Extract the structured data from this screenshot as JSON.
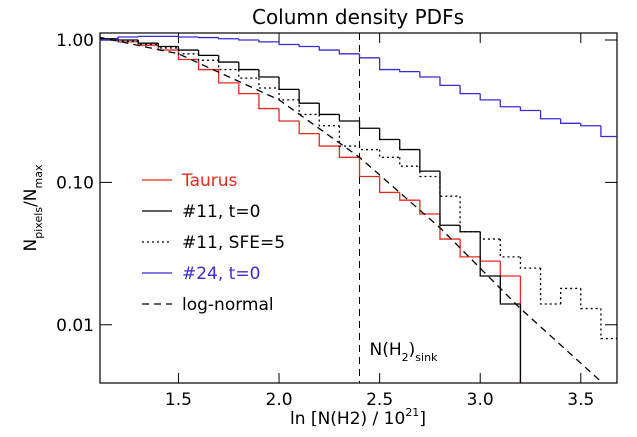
{
  "chart_data": {
    "type": "histogram",
    "title": "Column density PDFs",
    "xlabel": [
      "ln [N(H2) / 10",
      "21",
      "]"
    ],
    "ylabel": [
      "N",
      "pixels",
      "/N",
      "max"
    ],
    "annotation": [
      "N(H",
      "2",
      ")",
      "sink"
    ],
    "annotation_x": 2.4,
    "bins": [
      1.1,
      1.2,
      1.3,
      1.4,
      1.5,
      1.6,
      1.7,
      1.8,
      1.9,
      2.0,
      2.1,
      2.2,
      2.3,
      2.4,
      2.5,
      2.6,
      2.7,
      2.8,
      2.9,
      3.0,
      3.1,
      3.2,
      3.3,
      3.4,
      3.5,
      3.6,
      3.7
    ],
    "series": [
      {
        "name": "Taurus",
        "color": "#e8281e",
        "style": "solid",
        "values": [
          1.0,
          0.97,
          0.92,
          0.85,
          0.73,
          0.62,
          0.5,
          0.42,
          0.33,
          0.27,
          0.22,
          0.18,
          0.15,
          0.11,
          0.085,
          0.075,
          0.06,
          0.04,
          0.03,
          0.028,
          0.022,
          null,
          null,
          null,
          null,
          null
        ]
      },
      {
        "name": "#11, t=0",
        "color": "#000000",
        "style": "solid",
        "values": [
          1.02,
          1.0,
          0.95,
          0.9,
          0.85,
          0.78,
          0.7,
          0.62,
          0.55,
          0.45,
          0.36,
          0.3,
          0.27,
          0.24,
          0.2,
          0.17,
          0.12,
          0.05,
          0.045,
          0.022,
          0.014,
          null,
          null,
          null,
          null,
          null
        ]
      },
      {
        "name": "#11, SFE=5",
        "color": "#000000",
        "style": "dotted",
        "values": [
          1.0,
          0.98,
          0.93,
          0.88,
          0.8,
          0.72,
          0.62,
          0.54,
          0.46,
          0.38,
          0.3,
          0.25,
          0.18,
          0.17,
          0.15,
          0.13,
          0.11,
          0.08,
          0.045,
          0.04,
          0.03,
          0.025,
          0.014,
          0.018,
          0.013,
          0.008
        ]
      },
      {
        "name": "#24, t=0",
        "color": "#3a2bd6",
        "style": "solid",
        "values": [
          1.0,
          1.05,
          1.06,
          1.06,
          1.05,
          1.04,
          1.02,
          1.0,
          0.97,
          0.93,
          0.9,
          0.85,
          0.8,
          0.75,
          0.62,
          0.6,
          0.55,
          0.48,
          0.42,
          0.38,
          0.34,
          0.32,
          0.28,
          0.26,
          0.25,
          0.21
        ]
      }
    ],
    "reference": {
      "name": "log-normal",
      "color": "#000000",
      "style": "dashed",
      "x": [
        1.1,
        1.5,
        2.0,
        2.4,
        2.8,
        3.2,
        3.6
      ],
      "values": [
        1.05,
        0.8,
        0.38,
        0.15,
        0.048,
        0.013,
        0.004
      ]
    },
    "xlim": [
      1.11,
      3.68
    ],
    "ylim": [
      0.0039,
      1.12
    ],
    "log_y": true,
    "xticks": [
      1.5,
      {
        "value": 2,
        "label": "2.0"
      },
      2.5,
      {
        "value": 3,
        "label": "3.0"
      },
      3.5
    ],
    "yticks": [
      {
        "value": 1,
        "label": "1.00"
      },
      {
        "value": 0.1,
        "label": "0.10"
      },
      0.01
    ],
    "legend": "left"
  }
}
